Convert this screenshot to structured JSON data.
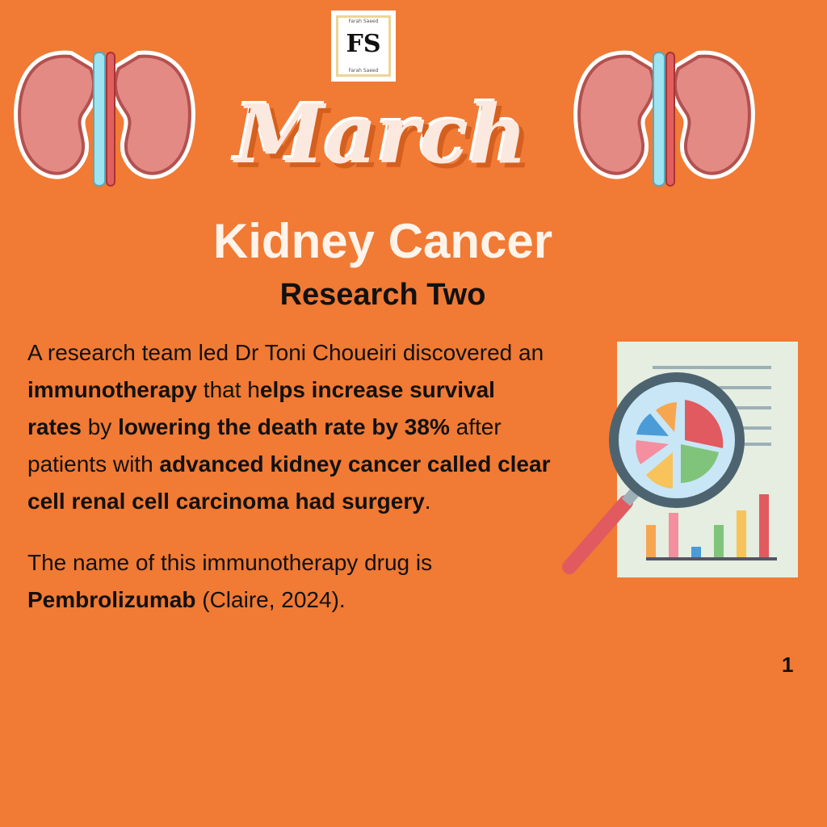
{
  "logo": {
    "name_top": "Farah Saeed",
    "monogram": "FS",
    "name_bottom": "Farah Saeed"
  },
  "header": {
    "month": "March",
    "title": "Kidney Cancer",
    "subtitle": "Research Two"
  },
  "paragraph1": [
    {
      "text": "A research team led Dr Toni Choueiri discovered an ",
      "bold": false
    },
    {
      "text": "immunotherapy",
      "bold": true
    },
    {
      "text": " that h",
      "bold": false
    },
    {
      "text": "elps increase survival rates",
      "bold": true
    },
    {
      "text": " by ",
      "bold": false
    },
    {
      "text": "lowering the death rate by 38%",
      "bold": true
    },
    {
      "text": " after patients with ",
      "bold": false
    },
    {
      "text": "advanced kidney cancer called clear cell renal cell carcinoma had surgery",
      "bold": true
    },
    {
      "text": ".",
      "bold": false
    }
  ],
  "paragraph2": [
    {
      "text": "The name of this immunotherapy drug is ",
      "bold": false
    },
    {
      "text": "Pembrolizumab",
      "bold": true
    },
    {
      "text": " (Claire, 2024).",
      "bold": false
    }
  ],
  "page_number": "1",
  "colors": {
    "background": "#f17a34",
    "title": "#fff3ea",
    "text": "#111111"
  },
  "icons": [
    "kidney-icon",
    "kidney-icon",
    "report-magnifier-icon"
  ]
}
